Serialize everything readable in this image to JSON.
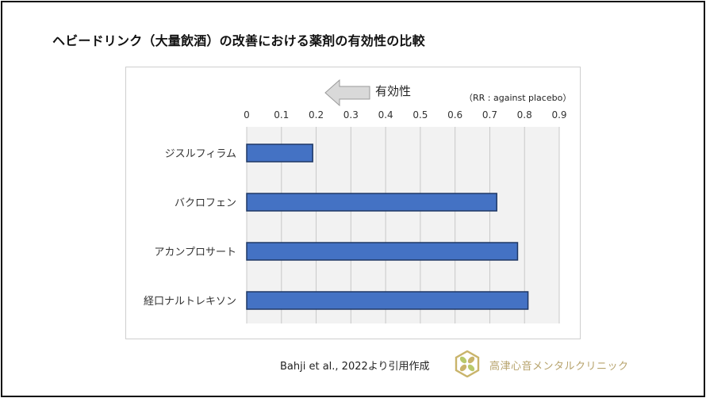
{
  "title": "ヘビードリンク（大量飲酒）の改善における薬剤の有効性の比較",
  "annotation": {
    "arrow_label": "有効性",
    "note": "（RR : against placebo）"
  },
  "chart_data": {
    "type": "bar",
    "orientation": "horizontal",
    "categories": [
      "ジスルフィラム",
      "バクロフェン",
      "アカンプロサート",
      "経口ナルトレキソン"
    ],
    "values": [
      0.19,
      0.72,
      0.78,
      0.81
    ],
    "xlim": [
      0,
      0.9
    ],
    "ticks": [
      "0",
      "0.1",
      "0.2",
      "0.3",
      "0.4",
      "0.5",
      "0.6",
      "0.7",
      "0.8",
      "0.9"
    ],
    "tick_values": [
      0,
      0.1,
      0.2,
      0.3,
      0.4,
      0.5,
      0.6,
      0.7,
      0.8,
      0.9
    ],
    "grid": true,
    "bar_color": "#4472C4",
    "bar_edge": "#1F3864",
    "plot_bg": "#F2F2F2"
  },
  "footer": {
    "citation": "Bahji et al., 2022より引用作成",
    "clinic": "高津心音メンタルクリニック",
    "logo_color": "#C9B46B"
  }
}
